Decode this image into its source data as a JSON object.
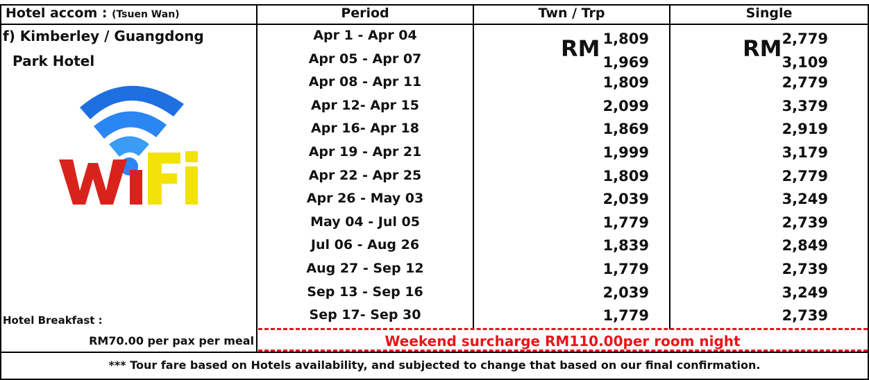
{
  "header": {
    "hotel": "Hotel accom : ",
    "location": "(Tsuen Wan)",
    "period": "Period",
    "twin": "Twn / Trp",
    "single": "Single"
  },
  "hotel": {
    "name": [
      "f) Kimberley / Guangdong",
      "Park Hotel"
    ],
    "breakfast_label": "Hotel Breakfast :",
    "breakfast_price": "RM70.00 per pax per meal"
  },
  "currency": "RM",
  "rows": [
    [
      "Apr 1 - Apr 04",
      "1,809",
      "2,779"
    ],
    [
      "Apr 05 - Apr 07",
      "1,969",
      "3,109"
    ],
    [
      "Apr 08 - Apr 11",
      "1,809",
      "2,779"
    ],
    [
      "Apr 12- Apr 15",
      "2,099",
      "3,379"
    ],
    [
      "Apr 16- Apr 18",
      "1,869",
      "2,919"
    ],
    [
      "Apr 19 - Apr 21",
      "1,999",
      "3,179"
    ],
    [
      "Apr 22 - Apr 25",
      "1,809",
      "2,779"
    ],
    [
      "Apr 26 - May 03",
      "2,039",
      "3,249"
    ],
    [
      "May 04 - Jul 05",
      "1,779",
      "2,739"
    ],
    [
      "Jul 06 - Aug 26",
      "1,839",
      "2,849"
    ],
    [
      "Aug 27 - Sep 12",
      "1,779",
      "2,739"
    ],
    [
      "Sep 13 - Sep 16",
      "2,039",
      "3,249"
    ],
    [
      "Sep 17- Sep 30",
      "1,779",
      "2,739"
    ]
  ],
  "surcharge": "Weekend surcharge RM110.00per room night",
  "footnote": "*** Tour fare based on Hotels availability, and subjected to change that based on our final confirmation."
}
